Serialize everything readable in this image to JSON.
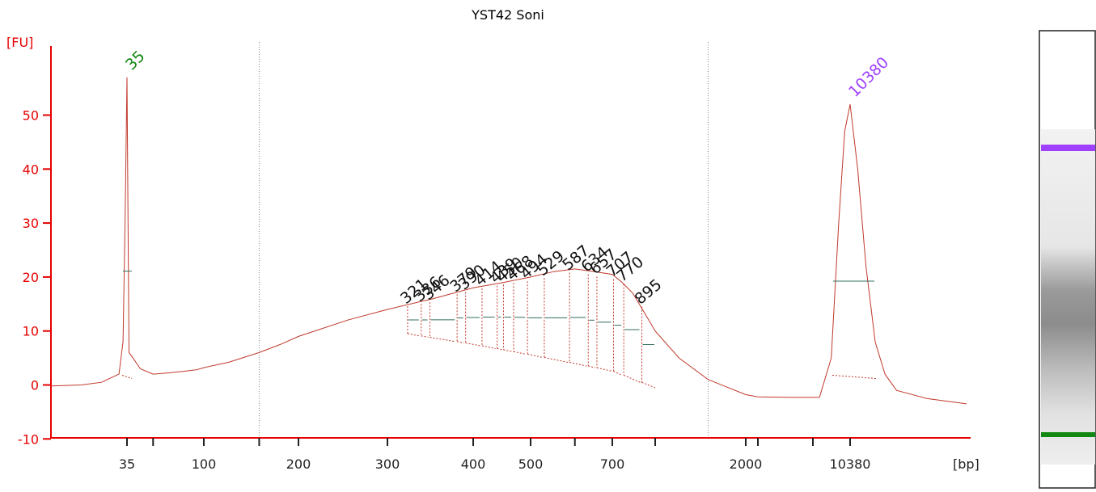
{
  "chart_data": {
    "type": "line",
    "title": "YST42 Soni",
    "y_unit": "[FU]",
    "x_unit": "[bp]",
    "ylim": [
      -10,
      60
    ],
    "yticks": [
      -10,
      0,
      10,
      20,
      30,
      40,
      50
    ],
    "xticks": [
      {
        "label": "35",
        "bp": 35
      },
      {
        "label": "",
        "bp": 50
      },
      {
        "label": "100",
        "bp": 100
      },
      {
        "label": "",
        "bp": 150
      },
      {
        "label": "200",
        "bp": 200
      },
      {
        "label": "300",
        "bp": 300
      },
      {
        "label": "400",
        "bp": 400
      },
      {
        "label": "500",
        "bp": 500
      },
      {
        "label": "",
        "bp": 600
      },
      {
        "label": "700",
        "bp": 700
      },
      {
        "label": "",
        "bp": 1000
      },
      {
        "label": "2000",
        "bp": 2000
      },
      {
        "label": "",
        "bp": 3000
      },
      {
        "label": "",
        "bp": 7000
      },
      {
        "label": "10380",
        "bp": 10380
      }
    ],
    "region_bounds_bp": [
      150,
      1500
    ],
    "colors": {
      "axis": "#e60000",
      "trace": "#c0392b",
      "lower_marker": "#118811",
      "upper_marker": "#a040ff",
      "dashed": "#c0392b"
    },
    "markers": [
      {
        "label": "35",
        "bp": 35,
        "height": 57,
        "color": "lower_marker"
      },
      {
        "label": "10380",
        "bp": 10380,
        "height": 52,
        "color": "upper_marker"
      }
    ],
    "series": [
      {
        "values": [
          {
            "bp": 20,
            "fu": -0.2
          },
          {
            "bp": 25,
            "fu": 0
          },
          {
            "bp": 29,
            "fu": 0.5
          },
          {
            "bp": 33,
            "fu": 2
          },
          {
            "bp": 34,
            "fu": 8
          },
          {
            "bp": 34.5,
            "fu": 30
          },
          {
            "bp": 35,
            "fu": 57
          },
          {
            "bp": 35.5,
            "fu": 30
          },
          {
            "bp": 36,
            "fu": 6
          },
          {
            "bp": 38,
            "fu": 5
          },
          {
            "bp": 42,
            "fu": 3
          },
          {
            "bp": 50,
            "fu": 2
          },
          {
            "bp": 60,
            "fu": 2.2
          },
          {
            "bp": 75,
            "fu": 2.5
          },
          {
            "bp": 90,
            "fu": 2.8
          },
          {
            "bp": 100,
            "fu": 3.2
          },
          {
            "bp": 120,
            "fu": 4.2
          },
          {
            "bp": 150,
            "fu": 6
          },
          {
            "bp": 175,
            "fu": 7.5
          },
          {
            "bp": 200,
            "fu": 9
          },
          {
            "bp": 250,
            "fu": 12
          },
          {
            "bp": 300,
            "fu": 14
          },
          {
            "bp": 350,
            "fu": 16
          },
          {
            "bp": 400,
            "fu": 18
          },
          {
            "bp": 450,
            "fu": 19
          },
          {
            "bp": 500,
            "fu": 20
          },
          {
            "bp": 550,
            "fu": 21
          },
          {
            "bp": 600,
            "fu": 21.5
          },
          {
            "bp": 650,
            "fu": 21
          },
          {
            "bp": 700,
            "fu": 20.5
          },
          {
            "bp": 760,
            "fu": 19
          },
          {
            "bp": 830,
            "fu": 17
          },
          {
            "bp": 900,
            "fu": 14
          },
          {
            "bp": 1000,
            "fu": 10
          },
          {
            "bp": 1200,
            "fu": 5
          },
          {
            "bp": 1500,
            "fu": 1
          },
          {
            "bp": 2000,
            "fu": -1.8
          },
          {
            "bp": 3000,
            "fu": -2.2
          },
          {
            "bp": 5000,
            "fu": -2.3
          },
          {
            "bp": 7500,
            "fu": -2.3
          },
          {
            "bp": 8500,
            "fu": 5
          },
          {
            "bp": 9200,
            "fu": 30
          },
          {
            "bp": 9800,
            "fu": 47
          },
          {
            "bp": 10380,
            "fu": 52
          },
          {
            "bp": 10900,
            "fu": 40
          },
          {
            "bp": 11500,
            "fu": 22
          },
          {
            "bp": 12200,
            "fu": 8
          },
          {
            "bp": 13000,
            "fu": 2
          },
          {
            "bp": 14000,
            "fu": -1
          },
          {
            "bp": 17000,
            "fu": -2.5
          },
          {
            "bp": 22000,
            "fu": -3.5
          }
        ]
      }
    ],
    "peaks": [
      {
        "label": "321",
        "bp": 321,
        "fu": 14.6
      },
      {
        "label": "336",
        "bp": 336,
        "fu": 15.0
      },
      {
        "label": "346",
        "bp": 346,
        "fu": 15.3
      },
      {
        "label": "379",
        "bp": 379,
        "fu": 16.8
      },
      {
        "label": "390",
        "bp": 390,
        "fu": 17.2
      },
      {
        "label": "414",
        "bp": 414,
        "fu": 17.9
      },
      {
        "label": "439",
        "bp": 439,
        "fu": 18.4
      },
      {
        "label": "450",
        "bp": 450,
        "fu": 18.6
      },
      {
        "label": "468",
        "bp": 468,
        "fu": 18.9
      },
      {
        "label": "494",
        "bp": 494,
        "fu": 19.2
      },
      {
        "label": "529",
        "bp": 529,
        "fu": 19.8
      },
      {
        "label": "587",
        "bp": 587,
        "fu": 20.8
      },
      {
        "label": "634",
        "bp": 634,
        "fu": 20.5
      },
      {
        "label": "657",
        "bp": 657,
        "fu": 20.1
      },
      {
        "label": "707",
        "bp": 707,
        "fu": 19.6
      },
      {
        "label": "770",
        "bp": 770,
        "fu": 18.7
      },
      {
        "label": "895",
        "bp": 895,
        "fu": 14.5
      }
    ]
  },
  "gel": {
    "upper_marker_color": "#a040ff",
    "lower_marker_color": "#118811"
  }
}
